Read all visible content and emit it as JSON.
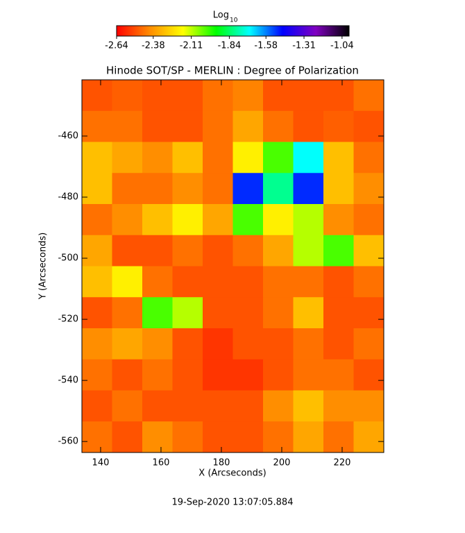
{
  "chart_data": {
    "type": "heatmap",
    "title": "Hinode SOT/SP - MERLIN : Degree of Polarization",
    "x_label": "X (Arcseconds)",
    "y_label": "Y (Arcseconds)",
    "annotation": "19-Sep-2020 13:07:05.884",
    "colorbar_label": "Log",
    "colorbar_label_sub": "10",
    "colorbar_ticks": [
      -2.64,
      -2.38,
      -2.11,
      -1.84,
      -1.58,
      -1.31,
      -1.04
    ],
    "clim": [
      -2.64,
      -0.99
    ],
    "colormap": [
      "#ff0000",
      "#ff8c00",
      "#ffff00",
      "#00ff00",
      "#00ffff",
      "#0000ff",
      "#8000c0",
      "#000000"
    ],
    "xlim": [
      133.8,
      233.8
    ],
    "ylim": [
      -563.6,
      -441.6
    ],
    "xticks": [
      140,
      160,
      180,
      200,
      220
    ],
    "yticks": [
      -460,
      -480,
      -500,
      -520,
      -540,
      -560
    ],
    "z": [
      [
        -2.5,
        -2.48,
        -2.5,
        -2.5,
        -2.45,
        -2.42,
        -2.5,
        -2.5,
        -2.5,
        -2.45
      ],
      [
        -2.45,
        -2.45,
        -2.5,
        -2.5,
        -2.45,
        -2.35,
        -2.45,
        -2.5,
        -2.48,
        -2.5
      ],
      [
        -2.3,
        -2.35,
        -2.4,
        -2.3,
        -2.45,
        -2.2,
        -2.0,
        -1.7,
        -2.3,
        -2.45
      ],
      [
        -2.3,
        -2.45,
        -2.45,
        -2.4,
        -2.45,
        -1.5,
        -1.8,
        -1.5,
        -2.3,
        -2.4
      ],
      [
        -2.45,
        -2.4,
        -2.3,
        -2.2,
        -2.35,
        -2.0,
        -2.2,
        -2.1,
        -2.4,
        -2.45
      ],
      [
        -2.35,
        -2.5,
        -2.5,
        -2.45,
        -2.5,
        -2.45,
        -2.35,
        -2.1,
        -2.0,
        -2.3
      ],
      [
        -2.3,
        -2.2,
        -2.45,
        -2.5,
        -2.5,
        -2.5,
        -2.45,
        -2.45,
        -2.5,
        -2.45
      ],
      [
        -2.5,
        -2.45,
        -2.0,
        -2.1,
        -2.5,
        -2.5,
        -2.45,
        -2.3,
        -2.5,
        -2.5
      ],
      [
        -2.4,
        -2.35,
        -2.4,
        -2.5,
        -2.55,
        -2.5,
        -2.5,
        -2.45,
        -2.5,
        -2.45
      ],
      [
        -2.45,
        -2.5,
        -2.45,
        -2.5,
        -2.55,
        -2.55,
        -2.5,
        -2.45,
        -2.45,
        -2.5
      ],
      [
        -2.5,
        -2.45,
        -2.5,
        -2.5,
        -2.5,
        -2.5,
        -2.4,
        -2.3,
        -2.4,
        -2.4
      ],
      [
        -2.45,
        -2.5,
        -2.4,
        -2.45,
        -2.5,
        -2.5,
        -2.45,
        -2.35,
        -2.45,
        -2.35
      ]
    ]
  }
}
